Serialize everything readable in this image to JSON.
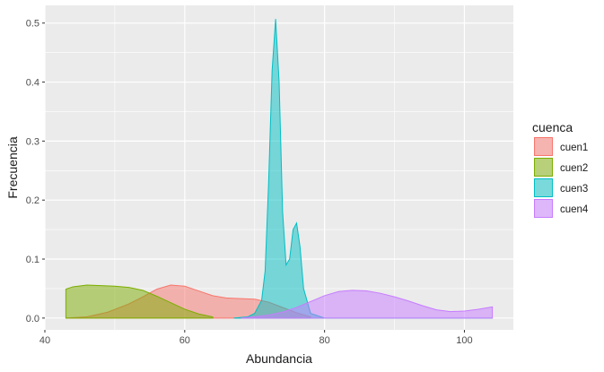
{
  "chart_data": {
    "type": "area",
    "xlabel": "Abundancia",
    "ylabel": "Frecuencia",
    "xlim": [
      40,
      107
    ],
    "ylim": [
      -0.02,
      0.53
    ],
    "x_ticks": [
      40,
      60,
      80,
      100
    ],
    "x_tick_labels": [
      "40",
      "60",
      "80",
      "100"
    ],
    "y_ticks": [
      0.0,
      0.1,
      0.2,
      0.3,
      0.4,
      0.5
    ],
    "y_tick_labels": [
      "0.0",
      "0.1",
      "0.2",
      "0.3",
      "0.4",
      "0.5"
    ],
    "grid": true,
    "legend": {
      "title": "cuenca",
      "position": "right"
    },
    "series": [
      {
        "name": "cuen1",
        "fill": "#F8766D",
        "x": [
          43,
          46,
          49,
          52,
          54,
          56,
          58,
          60,
          62,
          64,
          66,
          68,
          70,
          72,
          74,
          76,
          78
        ],
        "y": [
          0.0,
          0.002,
          0.01,
          0.024,
          0.036,
          0.049,
          0.056,
          0.054,
          0.046,
          0.038,
          0.034,
          0.033,
          0.032,
          0.027,
          0.018,
          0.009,
          0.002
        ]
      },
      {
        "name": "cuen2",
        "fill": "#7CAE00",
        "x": [
          43,
          44,
          46,
          48,
          50,
          52,
          54,
          56,
          58,
          60,
          62,
          64
        ],
        "y": [
          0.049,
          0.053,
          0.056,
          0.055,
          0.054,
          0.052,
          0.047,
          0.037,
          0.026,
          0.015,
          0.007,
          0.002
        ]
      },
      {
        "name": "cuen3",
        "fill": "#00BFC4",
        "x": [
          67,
          69,
          70,
          71,
          71.5,
          72,
          72.5,
          73,
          73.5,
          74,
          74.5,
          75,
          75.5,
          76,
          76.5,
          77,
          78,
          80,
          104
        ],
        "y": [
          0.0,
          0.002,
          0.008,
          0.03,
          0.08,
          0.23,
          0.42,
          0.507,
          0.4,
          0.18,
          0.09,
          0.1,
          0.15,
          0.161,
          0.12,
          0.05,
          0.008,
          0.0,
          0.0
        ]
      },
      {
        "name": "cuen4",
        "fill": "#C77CFF",
        "x": [
          68,
          70,
          72,
          74,
          76,
          78,
          80,
          82,
          84,
          86,
          88,
          90,
          92,
          94,
          96,
          98,
          100,
          102,
          104
        ],
        "y": [
          0.0,
          0.002,
          0.005,
          0.01,
          0.018,
          0.028,
          0.038,
          0.045,
          0.047,
          0.046,
          0.042,
          0.036,
          0.029,
          0.021,
          0.014,
          0.011,
          0.012,
          0.015,
          0.019
        ]
      }
    ]
  }
}
